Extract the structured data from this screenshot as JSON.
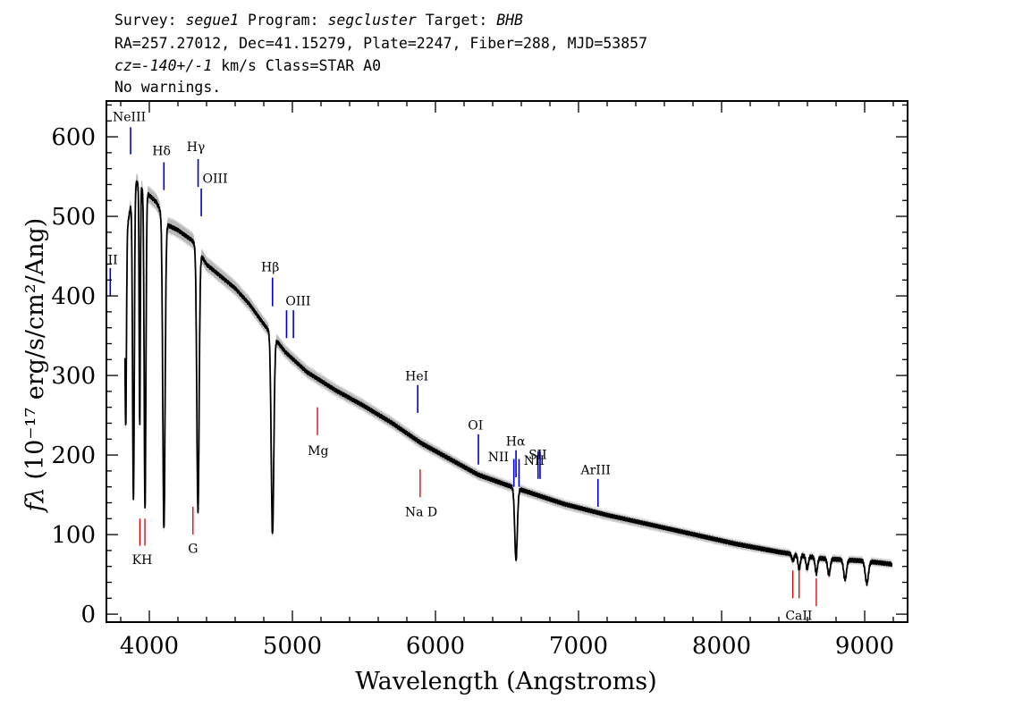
{
  "header": {
    "line1": {
      "survey_label": "Survey: ",
      "survey": "segue1",
      "program_label": " Program: ",
      "program": "segcluster",
      "target_label": " Target: ",
      "target": "BHB"
    },
    "line2": "RA=257.27012, Dec=41.15279, Plate=2247, Fiber=288, MJD=53857",
    "line3": {
      "cz": "cz=-140+/-1",
      "rest": " km/s Class=STAR A0"
    },
    "line4": "No warnings."
  },
  "chart_data": {
    "type": "line",
    "xlabel": "Wavelength (Angstroms)",
    "ylabel": "fλ (10⁻¹⁷ erg/s/cm²/Ang)",
    "xlim": [
      3700,
      9300
    ],
    "ylim": [
      -10,
      645
    ],
    "xticks": [
      4000,
      5000,
      6000,
      7000,
      8000,
      9000
    ],
    "yticks": [
      0,
      100,
      200,
      300,
      400,
      500,
      600
    ],
    "colors": {
      "spectrum": "#000000",
      "error": "#b8b8b8",
      "emission": "#0000cc",
      "absorption": "#cc0000"
    },
    "continuum": [
      [
        3830,
        470
      ],
      [
        3900,
        545
      ],
      [
        3980,
        530
      ],
      [
        4050,
        518
      ],
      [
        4120,
        490
      ],
      [
        4200,
        483
      ],
      [
        4300,
        470
      ],
      [
        4400,
        440
      ],
      [
        4500,
        425
      ],
      [
        4600,
        410
      ],
      [
        4700,
        390
      ],
      [
        4800,
        365
      ],
      [
        4950,
        330
      ],
      [
        5100,
        305
      ],
      [
        5300,
        282
      ],
      [
        5500,
        262
      ],
      [
        5700,
        240
      ],
      [
        5900,
        215
      ],
      [
        6100,
        195
      ],
      [
        6300,
        175
      ],
      [
        6500,
        162
      ],
      [
        6700,
        150
      ],
      [
        6900,
        138
      ],
      [
        7200,
        124
      ],
      [
        7500,
        112
      ],
      [
        7800,
        100
      ],
      [
        8100,
        88
      ],
      [
        8400,
        78
      ],
      [
        8700,
        70
      ],
      [
        9000,
        67
      ],
      [
        9190,
        63
      ]
    ],
    "absorption_features": [
      {
        "wave": 3835,
        "depth": 240,
        "width": 5
      },
      {
        "wave": 3889,
        "depth": 390,
        "width": 6
      },
      {
        "wave": 3933,
        "depth": 300,
        "width": 4
      },
      {
        "wave": 3970,
        "depth": 400,
        "width": 6
      },
      {
        "wave": 4102,
        "depth": 390,
        "width": 8
      },
      {
        "wave": 4340,
        "depth": 330,
        "width": 8
      },
      {
        "wave": 4861,
        "depth": 250,
        "width": 9
      },
      {
        "wave": 6563,
        "depth": 90,
        "width": 9
      },
      {
        "wave": 8498,
        "depth": 8,
        "width": 8
      },
      {
        "wave": 8542,
        "depth": 18,
        "width": 8
      },
      {
        "wave": 8598,
        "depth": 16,
        "width": 8
      },
      {
        "wave": 8662,
        "depth": 20,
        "width": 8
      },
      {
        "wave": 8750,
        "depth": 20,
        "width": 9
      },
      {
        "wave": 8863,
        "depth": 25,
        "width": 10
      },
      {
        "wave": 9015,
        "depth": 28,
        "width": 11
      }
    ],
    "emission_lines": [
      {
        "label": "NeIII",
        "wave": 3869,
        "y0": 578,
        "y1": 612
      },
      {
        "label": "Hδ",
        "wave": 4102,
        "y0": 533,
        "y1": 568
      },
      {
        "label": "Hγ",
        "wave": 4341,
        "y0": 537,
        "y1": 572
      },
      {
        "label": "OIII",
        "wave": 4363,
        "y0": 500,
        "y1": 535
      },
      {
        "label": "II",
        "wave": 3727,
        "y0": 400,
        "y1": 435
      },
      {
        "label": "Hβ",
        "wave": 4861,
        "y0": 387,
        "y1": 423
      },
      {
        "label": "OIII",
        "wave": 4959,
        "y0": 347,
        "y1": 382
      },
      {
        "label": "OIII",
        "wave": 5007,
        "y0": 347,
        "y1": 382
      },
      {
        "label": "HeI",
        "wave": 5876,
        "y0": 253,
        "y1": 288
      },
      {
        "label": "OI",
        "wave": 6300,
        "y0": 188,
        "y1": 226
      },
      {
        "label": "NII",
        "wave": 6548,
        "y0": 160,
        "y1": 195
      },
      {
        "label": "Hα",
        "wave": 6563,
        "y0": 172,
        "y1": 206
      },
      {
        "label": "NII",
        "wave": 6584,
        "y0": 160,
        "y1": 195
      },
      {
        "label": "SII",
        "wave": 6717,
        "y0": 170,
        "y1": 205
      },
      {
        "label": "SII",
        "wave": 6731,
        "y0": 170,
        "y1": 205
      },
      {
        "label": "ArIII",
        "wave": 7136,
        "y0": 135,
        "y1": 170
      }
    ],
    "absorption_lines": [
      {
        "label": "K",
        "wave": 3934,
        "y0": 86,
        "y1": 120
      },
      {
        "label": "H",
        "wave": 3969,
        "y0": 86,
        "y1": 120
      },
      {
        "label": "G",
        "wave": 4305,
        "y0": 100,
        "y1": 135
      },
      {
        "label": "Mg",
        "wave": 5175,
        "y0": 225,
        "y1": 260
      },
      {
        "label": "Na D",
        "wave": 5893,
        "y0": 147,
        "y1": 182
      },
      {
        "label": "CaII",
        "wave": 8498,
        "y0": 20,
        "y1": 55
      },
      {
        "label": "CaII",
        "wave": 8542,
        "y0": 20,
        "y1": 55
      },
      {
        "label": "CaII",
        "wave": 8662,
        "y0": 10,
        "y1": 45
      }
    ],
    "line_labels": [
      {
        "text": "NeIII",
        "wave": 3860,
        "y": 620
      },
      {
        "text": "Hδ",
        "wave": 4085,
        "y": 577
      },
      {
        "text": "Hγ",
        "wave": 4325,
        "y": 582
      },
      {
        "text": "OIII",
        "wave": 4460,
        "y": 542
      },
      {
        "text": "II",
        "wave": 3745,
        "y": 440
      },
      {
        "text": "Hβ",
        "wave": 4845,
        "y": 431
      },
      {
        "text": "OIII",
        "wave": 5040,
        "y": 388
      },
      {
        "text": "HeI",
        "wave": 5870,
        "y": 294
      },
      {
        "text": "OI",
        "wave": 6280,
        "y": 232
      },
      {
        "text": "NII",
        "wave": 6440,
        "y": 192
      },
      {
        "text": "Hα",
        "wave": 6560,
        "y": 212
      },
      {
        "text": "NII",
        "wave": 6690,
        "y": 188
      },
      {
        "text": "SII",
        "wave": 6715,
        "y": 195
      },
      {
        "text": "ArIII",
        "wave": 7120,
        "y": 176
      },
      {
        "text": "KH",
        "wave": 3950,
        "y": 63
      },
      {
        "text": "G",
        "wave": 4305,
        "y": 77
      },
      {
        "text": "Mg",
        "wave": 5180,
        "y": 200
      },
      {
        "text": "Na D",
        "wave": 5900,
        "y": 123
      },
      {
        "text": "CaII",
        "wave": 8540,
        "y": -7
      }
    ]
  }
}
